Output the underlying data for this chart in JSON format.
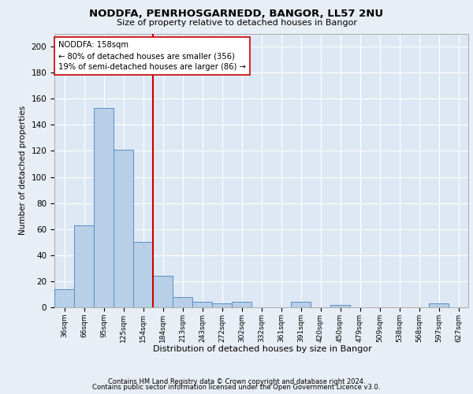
{
  "title": "NODDFA, PENRHOSGARNEDD, BANGOR, LL57 2NU",
  "subtitle": "Size of property relative to detached houses in Bangor",
  "xlabel": "Distribution of detached houses by size in Bangor",
  "ylabel": "Number of detached properties",
  "categories": [
    "36sqm",
    "66sqm",
    "95sqm",
    "125sqm",
    "154sqm",
    "184sqm",
    "213sqm",
    "243sqm",
    "272sqm",
    "302sqm",
    "332sqm",
    "361sqm",
    "391sqm",
    "420sqm",
    "450sqm",
    "479sqm",
    "509sqm",
    "538sqm",
    "568sqm",
    "597sqm",
    "627sqm"
  ],
  "values": [
    14,
    63,
    153,
    121,
    50,
    24,
    8,
    4,
    3,
    4,
    0,
    0,
    4,
    0,
    2,
    0,
    0,
    0,
    0,
    3,
    0
  ],
  "bar_color": "#b8cfe8",
  "bar_edge_color": "#5b8cc8",
  "background_color": "#e8eef5",
  "plot_bg_color": "#dde8f4",
  "grid_color": "#ffffff",
  "property_line_x": 4.5,
  "annotation_text": "NODDFA: 158sqm\n← 80% of detached houses are smaller (356)\n19% of semi-detached houses are larger (86) →",
  "annotation_line_color": "#cc0000",
  "ylim": [
    0,
    210
  ],
  "yticks": [
    0,
    20,
    40,
    60,
    80,
    100,
    120,
    140,
    160,
    180,
    200
  ],
  "footer1": "Contains HM Land Registry data © Crown copyright and database right 2024.",
  "footer2": "Contains public sector information licensed under the Open Government Licence v3.0."
}
